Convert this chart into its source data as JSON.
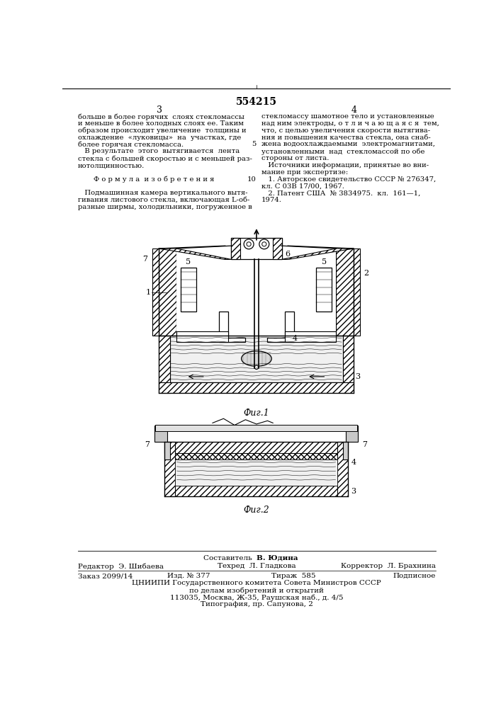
{
  "title": "554215",
  "page_left": "3",
  "page_right": "4",
  "bg_color": "#ffffff",
  "text_color": "#000000",
  "left_col_text": [
    "больше в более горячих  слоях стекломассы",
    "и меньше в более холодных слоях ее. Таким",
    "образом происходит увеличение  толщины и",
    "охлаждение  «луковицы»  на  участках, где",
    "более горячая стекломасса.",
    "   В результате  этого  вытягивается  лента",
    "стекла с большей скоростью и с меньшей раз-",
    "нотолщинностью.",
    "",
    "       Ф о р м у л а  и з о б р е т е н и я",
    "",
    "   Подмашинная камера вертикального вытя-",
    "гивания листового стекла, включающая L-об-",
    "разные ширмы, холодильники, погруженное в"
  ],
  "right_col_text": [
    "стекломассу шамотное тело и установленные",
    "над ним электроды, о т л и ч а ю щ а я с я  тем,",
    "что, с целью увеличения скорости вытягива-",
    "ния и повышения качества стекла, она снаб-",
    "жена водоохлаждаемыми  электромагнитами,",
    "установленными  над  стекломассой по обе",
    "стороны от листа.",
    "   Источники информации, принятые во вни-",
    "мание при экспертизе:",
    "   1. Авторское свидетельство СССР № 276347,",
    "кл. С 03В 17/00, 1967.",
    "   2. Патент США  № 3834975.  кл.  161—1,",
    "1974."
  ],
  "line_num_5": "5",
  "line_num_10": "10",
  "fig1_label": "Фиг.1",
  "fig2_label": "Фиг.2",
  "footer_compiler": "Составитель  В. Юдина",
  "footer_editor": "Редактор  Э. Шибаева",
  "footer_tech": "Техред  Л. Гладкова",
  "footer_corrector": "Корректор  Л. Брахнина",
  "footer_order": "Заказ 2099/14",
  "footer_izd": "Изд. № 377",
  "footer_tirazh": "Тираж  585",
  "footer_podpisnoe": "Подписное",
  "footer_tsniip": "ЦНИИПИ Государственного комитета Совета Министров СССР",
  "footer_address1": "по делам изобретений и открытий",
  "footer_address2": "113035, Москва, Ж-35, Раушская наб., д. 4/5",
  "footer_tipografia": "Типография, пр. Сапунова, 2"
}
